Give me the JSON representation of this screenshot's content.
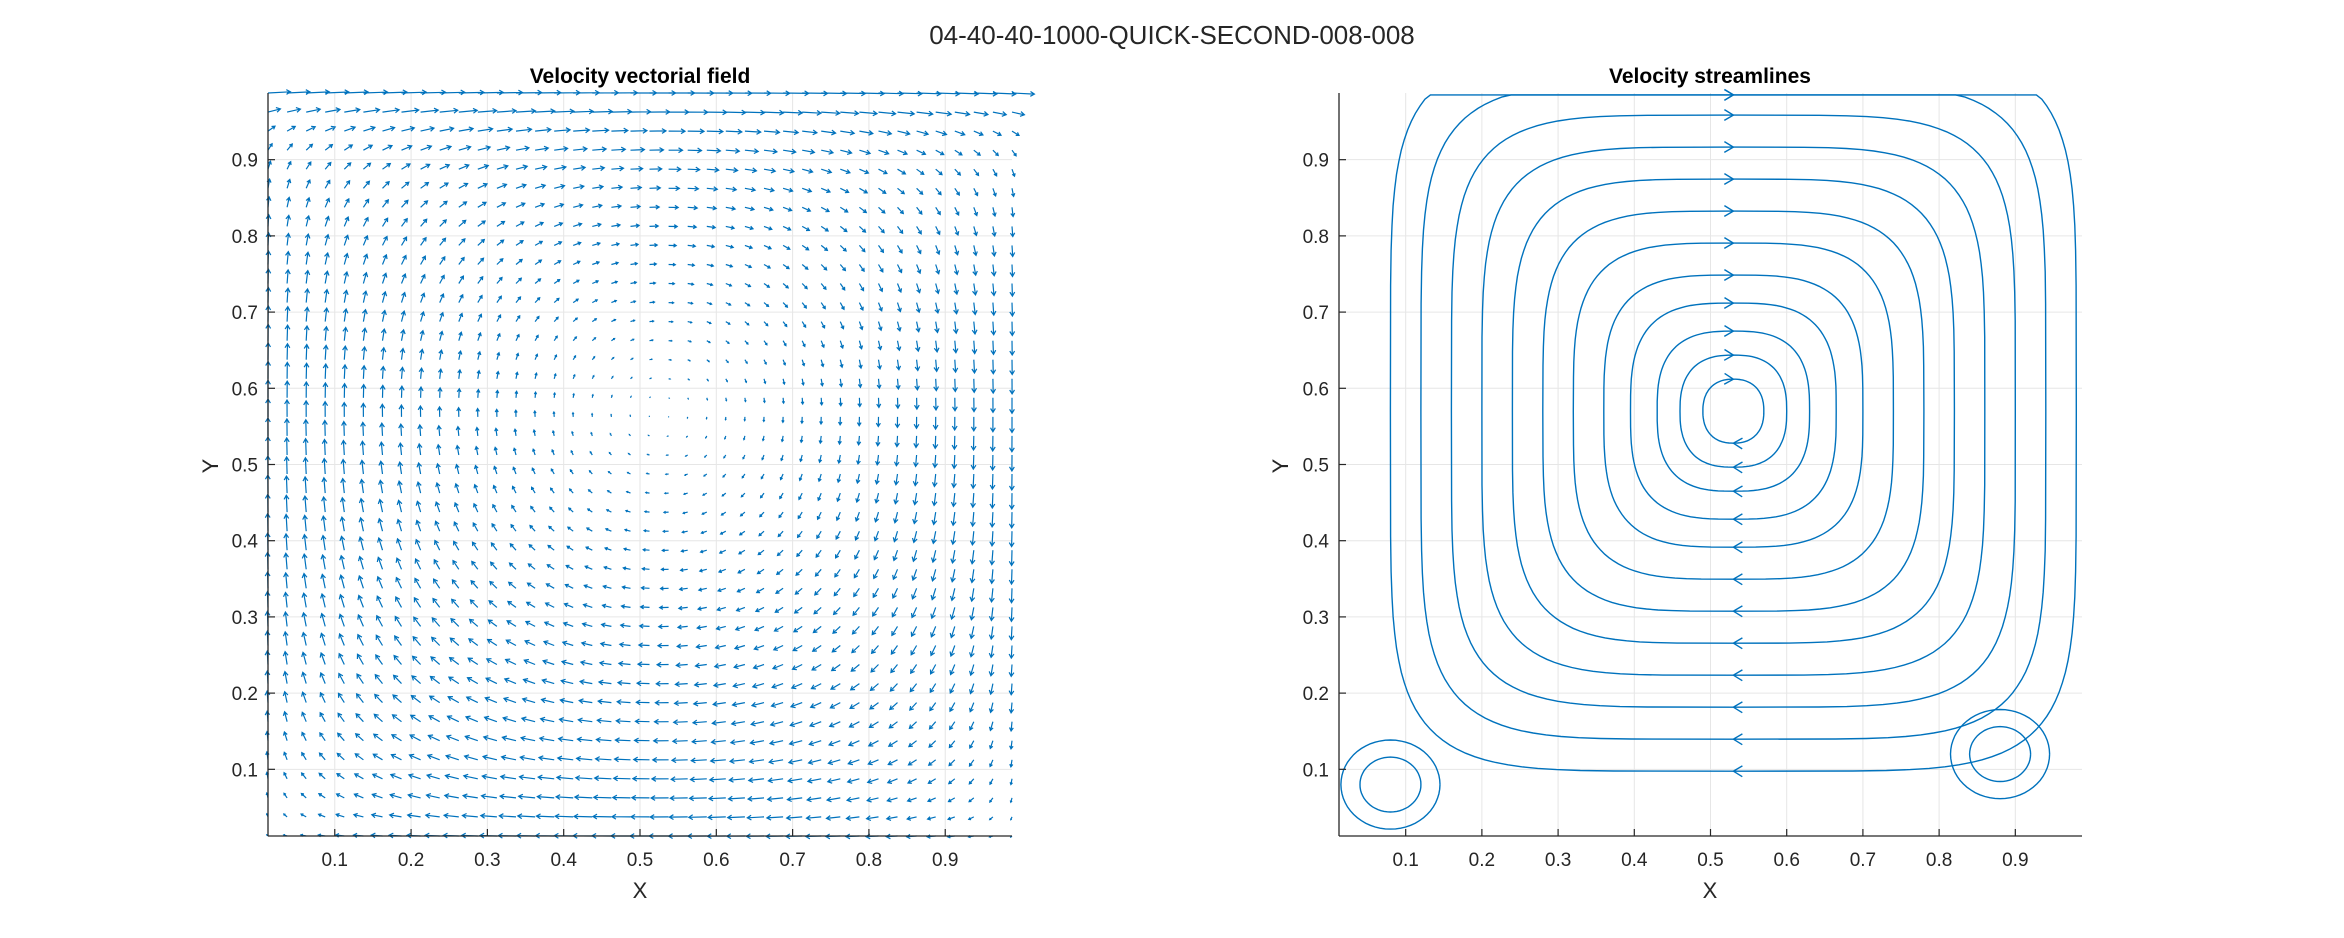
{
  "figure": {
    "title": "04-40-40-1000-QUICK-SECOND-008-008",
    "line_color": "#0072BD",
    "grid_color": "#e6e6e6",
    "axis_color": "#262626"
  },
  "chart_data": [
    {
      "type": "quiver",
      "title": "Velocity vectorial field",
      "xlabel": "X",
      "ylabel": "Y",
      "xlim": [
        0.0125,
        0.9875
      ],
      "ylim": [
        0.0125,
        0.9875
      ],
      "grid": true,
      "xticks": [
        "0.1",
        "0.2",
        "0.3",
        "0.4",
        "0.5",
        "0.6",
        "0.7",
        "0.8",
        "0.9"
      ],
      "yticks": [
        "0.1",
        "0.2",
        "0.3",
        "0.4",
        "0.5",
        "0.6",
        "0.7",
        "0.8",
        "0.9"
      ],
      "vortex_center": [
        0.53,
        0.57
      ],
      "lid_velocity": 1.0
    },
    {
      "type": "streamline",
      "title": "Velocity streamlines",
      "xlabel": "X",
      "ylabel": "Y",
      "xlim": [
        0.0125,
        0.9875
      ],
      "ylim": [
        0.0125,
        0.9875
      ],
      "grid": true,
      "xticks": [
        "0.1",
        "0.2",
        "0.3",
        "0.4",
        "0.5",
        "0.6",
        "0.7",
        "0.8",
        "0.9"
      ],
      "yticks": [
        "0.1",
        "0.2",
        "0.3",
        "0.4",
        "0.5",
        "0.6",
        "0.7",
        "0.8",
        "0.9"
      ],
      "vortex_center": [
        0.53,
        0.57
      ],
      "secondary_vortices": [
        [
          0.08,
          0.08
        ],
        [
          0.88,
          0.12
        ]
      ]
    }
  ]
}
